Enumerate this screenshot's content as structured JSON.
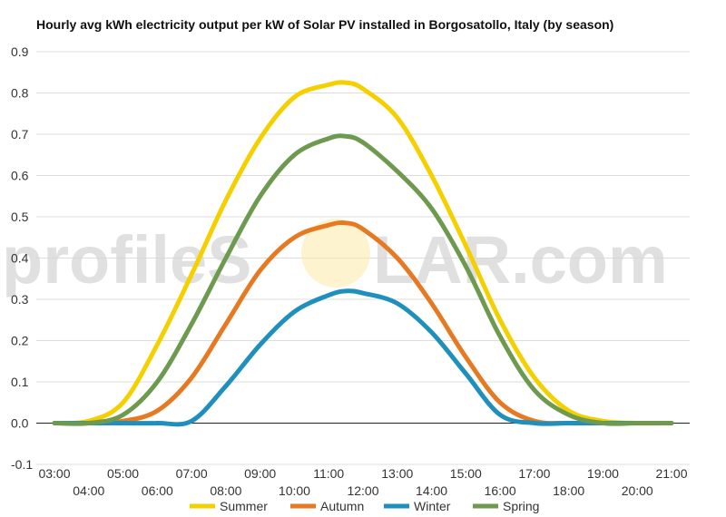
{
  "watermark": {
    "before": "profileS",
    "after": "LAR.com"
  },
  "chart_data": {
    "type": "line",
    "title": "Hourly avg kWh electricity output per kW of Solar PV installed in Borgosatollo, Italy (by season)",
    "xlabel": "",
    "ylabel": "",
    "x": [
      3,
      4,
      5,
      6,
      7,
      8,
      9,
      10,
      11,
      11.5,
      12,
      13,
      14,
      15,
      16,
      17,
      18,
      19,
      20,
      21
    ],
    "x_ticks": [
      {
        "value": 3,
        "label": "03:00"
      },
      {
        "value": 4,
        "label": "04:00"
      },
      {
        "value": 5,
        "label": "05:00"
      },
      {
        "value": 6,
        "label": "06:00"
      },
      {
        "value": 7,
        "label": "07:00"
      },
      {
        "value": 8,
        "label": "08:00"
      },
      {
        "value": 9,
        "label": "09:00"
      },
      {
        "value": 10,
        "label": "10:00"
      },
      {
        "value": 11,
        "label": "11:00"
      },
      {
        "value": 12,
        "label": "12:00"
      },
      {
        "value": 13,
        "label": "13:00"
      },
      {
        "value": 14,
        "label": "14:00"
      },
      {
        "value": 15,
        "label": "15:00"
      },
      {
        "value": 16,
        "label": "16:00"
      },
      {
        "value": 17,
        "label": "17:00"
      },
      {
        "value": 18,
        "label": "18:00"
      },
      {
        "value": 19,
        "label": "19:00"
      },
      {
        "value": 20,
        "label": "20:00"
      },
      {
        "value": 21,
        "label": "21:00"
      }
    ],
    "y_ticks": [
      {
        "value": 0.9,
        "label": "0.9"
      },
      {
        "value": 0.8,
        "label": "0.8"
      },
      {
        "value": 0.7,
        "label": "0.7"
      },
      {
        "value": 0.6,
        "label": "0.6"
      },
      {
        "value": 0.5,
        "label": "0.5"
      },
      {
        "value": 0.4,
        "label": "0.4"
      },
      {
        "value": 0.3,
        "label": "0.3"
      },
      {
        "value": 0.2,
        "label": "0.2"
      },
      {
        "value": 0.1,
        "label": "0.1"
      },
      {
        "value": 0.0,
        "label": "0.0"
      },
      {
        "value": -0.1,
        "label": "-0.1"
      }
    ],
    "xlim": [
      3,
      21
    ],
    "ylim": [
      -0.1,
      0.9
    ],
    "grid": true,
    "legend_position": "bottom",
    "series": [
      {
        "name": "Summer",
        "color": "#f5d000",
        "values": [
          0.0,
          0.005,
          0.05,
          0.19,
          0.36,
          0.54,
          0.69,
          0.79,
          0.82,
          0.825,
          0.81,
          0.74,
          0.6,
          0.43,
          0.25,
          0.11,
          0.03,
          0.005,
          0.0,
          0.0
        ]
      },
      {
        "name": "Autumn",
        "color": "#e67a23",
        "values": [
          0.0,
          0.0,
          0.005,
          0.03,
          0.11,
          0.24,
          0.37,
          0.45,
          0.48,
          0.485,
          0.47,
          0.4,
          0.29,
          0.16,
          0.05,
          0.005,
          0.0,
          0.0,
          0.0,
          0.0
        ]
      },
      {
        "name": "Winter",
        "color": "#1f8fbd",
        "values": [
          0.0,
          0.0,
          0.0,
          0.0,
          0.005,
          0.09,
          0.19,
          0.27,
          0.31,
          0.32,
          0.315,
          0.29,
          0.22,
          0.12,
          0.02,
          0.0,
          0.0,
          0.0,
          0.0,
          0.0
        ]
      },
      {
        "name": "Spring",
        "color": "#6e9a50",
        "values": [
          0.0,
          0.0,
          0.02,
          0.1,
          0.24,
          0.4,
          0.55,
          0.65,
          0.69,
          0.695,
          0.68,
          0.61,
          0.52,
          0.38,
          0.21,
          0.08,
          0.02,
          0.0,
          0.0,
          0.0
        ]
      }
    ]
  }
}
